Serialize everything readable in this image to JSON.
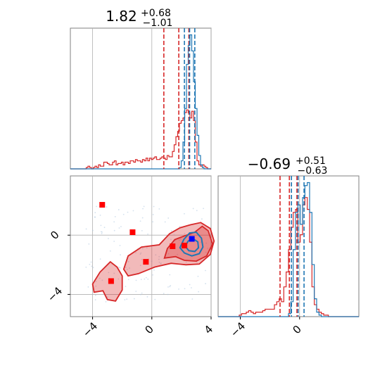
{
  "chart_data": {
    "type": "corner",
    "colors": {
      "series_a": "#d62728",
      "series_b": "#1f77b4",
      "marker_red": "#ff0000",
      "marker_blue": "#0000ff",
      "grid": "#b0b0b0"
    },
    "parameters": [
      {
        "title": {
          "median": "1.82",
          "upper": "+0.68",
          "lower": "−1.01"
        },
        "range": [
          -5.5,
          4.0
        ],
        "ticks": [
          {
            "value": -4,
            "label": "−4"
          },
          {
            "value": 0,
            "label": "0"
          },
          {
            "value": 4,
            "label": "4"
          }
        ]
      },
      {
        "title": {
          "median": "−0.69",
          "upper": "+0.51",
          "lower": "−0.63"
        },
        "range": [
          -5.5,
          4.0
        ],
        "ticks": [
          {
            "value": -4,
            "label": "−4"
          },
          {
            "value": 0,
            "label": "0"
          }
        ]
      }
    ],
    "scatter_ticks": {
      "x": [
        {
          "value": -4,
          "label": "−4"
        },
        {
          "value": 0,
          "label": "0"
        },
        {
          "value": 4,
          "label": "4"
        }
      ],
      "y": [
        {
          "value": 0,
          "label": "0"
        },
        {
          "value": -4,
          "label": "−4"
        }
      ]
    },
    "hist1": {
      "bins": [
        -5.5,
        4.0,
        80
      ],
      "series_a": [
        0,
        0,
        0,
        0,
        0,
        0,
        0,
        0,
        0,
        0.01,
        0.02,
        0.01,
        0,
        0.01,
        0.02,
        0.01,
        0.03,
        0.02,
        0.02,
        0.05,
        0.05,
        0.04,
        0.03,
        0.03,
        0.05,
        0.06,
        0.03,
        0.04,
        0.04,
        0.05,
        0.03,
        0.05,
        0.05,
        0.04,
        0.06,
        0.06,
        0.05,
        0.07,
        0.06,
        0.06,
        0.05,
        0.07,
        0.06,
        0.08,
        0.06,
        0.08,
        0.07,
        0.08,
        0.09,
        0.07,
        0.07,
        0.08,
        0.09,
        0.08,
        0.07,
        0.1,
        0.09,
        0.09,
        0.13,
        0.18,
        0.24,
        0.28,
        0.34,
        0.36,
        0.38,
        0.42,
        0.44,
        0.42,
        0.38,
        0.43,
        0.36,
        0.2,
        0.06,
        0.03,
        0.02,
        0.03,
        0.02,
        0.01,
        0,
        0
      ],
      "series_b": [
        0,
        0,
        0,
        0,
        0,
        0,
        0,
        0,
        0,
        0,
        0,
        0,
        0,
        0,
        0,
        0,
        0,
        0,
        0,
        0,
        0,
        0,
        0,
        0,
        0,
        0,
        0,
        0,
        0,
        0,
        0,
        0,
        0,
        0,
        0,
        0,
        0,
        0,
        0,
        0,
        0,
        0,
        0,
        0,
        0,
        0,
        0,
        0,
        0,
        0,
        0,
        0,
        0,
        0,
        0,
        0,
        0,
        0,
        0,
        0,
        0,
        0,
        0.01,
        0.06,
        0.2,
        0.45,
        0.78,
        0.92,
        1.0,
        0.88,
        0.65,
        0.45,
        0.25,
        0.1,
        0.03,
        0.01,
        0,
        0,
        0,
        0
      ],
      "quantiles_a": [
        0.81,
        1.82,
        2.5
      ],
      "quantiles_b": [
        2.2,
        2.55,
        2.9
      ]
    },
    "hist2": {
      "bins": [
        -5.5,
        4.0,
        60
      ],
      "series_a": [
        0,
        0,
        0,
        0,
        0,
        0,
        0,
        0,
        0,
        0.01,
        0.02,
        0.02,
        0.03,
        0.04,
        0.03,
        0.02,
        0.03,
        0.03,
        0.03,
        0.04,
        0.05,
        0.05,
        0.05,
        0.05,
        0.08,
        0.1,
        0.12,
        0.1,
        0.2,
        0.3,
        0.45,
        0.6,
        0.7,
        0.72,
        0.5,
        0.55,
        0.75,
        0.8,
        0.72,
        0.5,
        0.2,
        0.08,
        0.05,
        0.03,
        0.02,
        0.01,
        0.01,
        0,
        0,
        0,
        0,
        0,
        0,
        0,
        0,
        0,
        0,
        0,
        0,
        0
      ],
      "series_b": [
        0,
        0,
        0,
        0,
        0,
        0,
        0,
        0,
        0,
        0,
        0,
        0,
        0,
        0,
        0,
        0,
        0,
        0,
        0,
        0,
        0,
        0,
        0,
        0,
        0,
        0,
        0,
        0,
        0,
        0,
        0.02,
        0.1,
        0.45,
        0.7,
        0.75,
        0.62,
        0.8,
        0.88,
        0.9,
        0.7,
        0.35,
        0.12,
        0.03,
        0.01,
        0,
        0,
        0,
        0,
        0,
        0,
        0,
        0,
        0,
        0,
        0,
        0,
        0,
        0,
        0,
        0
      ],
      "quantiles_a": [
        -1.32,
        -0.69,
        -0.18
      ],
      "quantiles_b": [
        -0.55,
        -0.1,
        0.3
      ]
    },
    "scatter": {
      "series_a_contours": [
        [
          [
            0.85,
            -1.55
          ],
          [
            1.05,
            -0.9
          ],
          [
            1.55,
            -0.3
          ],
          [
            2.2,
            -0.05
          ],
          [
            2.9,
            0.2
          ],
          [
            3.4,
            0.6
          ],
          [
            3.8,
            0.3
          ],
          [
            4.1,
            -0.6
          ],
          [
            3.7,
            -1.4
          ],
          [
            3.0,
            -1.75
          ],
          [
            2.2,
            -1.7
          ],
          [
            1.6,
            -1.45
          ]
        ],
        [
          [
            -1.9,
            -2.3
          ],
          [
            -1.6,
            -1.4
          ],
          [
            -0.7,
            -0.8
          ],
          [
            0.5,
            -0.65
          ],
          [
            1.2,
            0.1
          ],
          [
            1.9,
            0.5
          ],
          [
            2.6,
            0.7
          ],
          [
            3.3,
            0.85
          ],
          [
            3.95,
            0.45
          ],
          [
            4.2,
            -0.4
          ],
          [
            3.95,
            -1.3
          ],
          [
            3.2,
            -1.95
          ],
          [
            2.3,
            -2.0
          ],
          [
            1.3,
            -1.9
          ],
          [
            0.2,
            -2.15
          ],
          [
            -0.9,
            -2.6
          ],
          [
            -1.6,
            -2.75
          ]
        ],
        [
          [
            -4.0,
            -3.3
          ],
          [
            -3.5,
            -2.5
          ],
          [
            -2.8,
            -1.8
          ],
          [
            -2.35,
            -2.15
          ],
          [
            -2.0,
            -2.75
          ],
          [
            -2.0,
            -3.7
          ],
          [
            -2.45,
            -4.45
          ],
          [
            -3.0,
            -4.35
          ],
          [
            -3.3,
            -3.75
          ],
          [
            -3.9,
            -3.85
          ]
        ]
      ],
      "series_b_contours": [
        [
          [
            1.9,
            -0.85
          ],
          [
            2.15,
            -0.3
          ],
          [
            2.55,
            0.15
          ],
          [
            3.0,
            0.2
          ],
          [
            3.35,
            -0.2
          ],
          [
            3.45,
            -0.8
          ],
          [
            3.2,
            -1.25
          ],
          [
            2.7,
            -1.4
          ],
          [
            2.2,
            -1.2
          ]
        ],
        [
          [
            2.25,
            -0.75
          ],
          [
            2.45,
            -0.4
          ],
          [
            2.8,
            -0.25
          ],
          [
            3.1,
            -0.45
          ],
          [
            3.15,
            -0.85
          ],
          [
            2.9,
            -1.1
          ],
          [
            2.5,
            -1.05
          ]
        ]
      ],
      "markers_a": [
        [
          -3.35,
          2.05
        ],
        [
          -1.3,
          0.2
        ],
        [
          -0.4,
          -1.8
        ],
        [
          1.4,
          -0.75
        ],
        [
          2.2,
          -0.7
        ],
        [
          -2.75,
          -3.1
        ]
      ],
      "markers_b": [
        [
          2.7,
          -0.25
        ]
      ]
    }
  }
}
